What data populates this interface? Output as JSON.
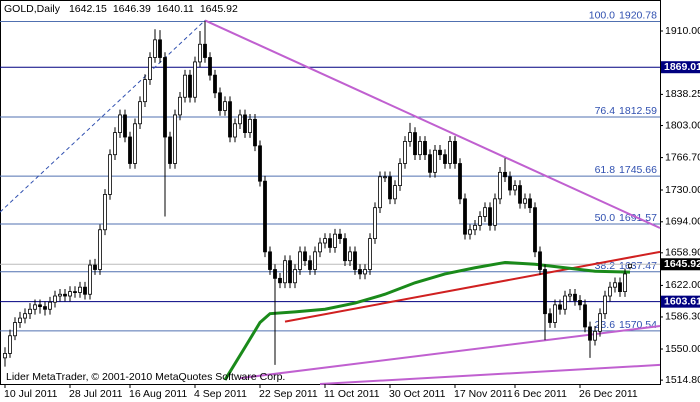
{
  "chart_data": {
    "type": "candlestick",
    "symbol": "GOLD,Daily",
    "footer": "Lider MetaTrader, © 2001-2010 MetaQuotes Software Corp.",
    "xlim": [
      -1,
      131
    ],
    "ylim": [
      1510.4,
      1945.1
    ],
    "yticks": [
      {
        "value": 1910,
        "label": "1910.00"
      },
      {
        "value": 1838.25,
        "label": "1838.25"
      },
      {
        "value": 1803,
        "label": "1803.00"
      },
      {
        "value": 1766.7,
        "label": "1766.70"
      },
      {
        "value": 1730,
        "label": "1730.00"
      },
      {
        "value": 1694,
        "label": "1694.00"
      },
      {
        "value": 1658.9,
        "label": "1658.90"
      },
      {
        "value": 1622,
        "label": "1622.00"
      },
      {
        "value": 1586.3,
        "label": "1586.30"
      },
      {
        "value": 1550,
        "label": "1550.00"
      },
      {
        "value": 1514.8,
        "label": "1514.80"
      }
    ],
    "xticks": [
      {
        "value": 0,
        "label": "10 Jul 2011"
      },
      {
        "value": 13,
        "label": "28 Jul 2011"
      },
      {
        "value": 25,
        "label": "16 Aug 2011"
      },
      {
        "value": 38,
        "label": "4 Sep 2011"
      },
      {
        "value": 51,
        "label": "22 Sep 2011"
      },
      {
        "value": 64,
        "label": "11 Oct 2011"
      },
      {
        "value": 77,
        "label": "30 Oct 2011"
      },
      {
        "value": 90,
        "label": "17 Nov 2011"
      },
      {
        "value": 102,
        "label": "6 Dec 2011"
      },
      {
        "value": 115,
        "label": "26 Dec 2011"
      }
    ],
    "ohlc": [
      [
        1540,
        1552,
        1530,
        1545
      ],
      [
        1545,
        1572,
        1540,
        1565
      ],
      [
        1565,
        1586,
        1560,
        1580
      ],
      [
        1580,
        1592,
        1574,
        1585
      ],
      [
        1585,
        1596,
        1579,
        1590
      ],
      [
        1590,
        1602,
        1584,
        1595
      ],
      [
        1595,
        1606,
        1589,
        1600
      ],
      [
        1600,
        1606,
        1590,
        1598
      ],
      [
        1598,
        1604,
        1588,
        1595
      ],
      [
        1595,
        1609,
        1589,
        1603
      ],
      [
        1603,
        1616,
        1597,
        1610
      ],
      [
        1610,
        1618,
        1604,
        1612
      ],
      [
        1612,
        1618,
        1604,
        1610
      ],
      [
        1610,
        1621,
        1604,
        1615
      ],
      [
        1615,
        1621,
        1608,
        1614
      ],
      [
        1614,
        1626,
        1608,
        1620
      ],
      [
        1620,
        1626,
        1606,
        1612
      ],
      [
        1612,
        1651,
        1606,
        1645
      ],
      [
        1645,
        1652,
        1634,
        1640
      ],
      [
        1640,
        1691,
        1634,
        1685
      ],
      [
        1685,
        1731,
        1679,
        1725
      ],
      [
        1725,
        1776,
        1719,
        1770
      ],
      [
        1770,
        1801,
        1764,
        1795
      ],
      [
        1795,
        1821,
        1789,
        1815
      ],
      [
        1815,
        1821,
        1784,
        1790
      ],
      [
        1790,
        1796,
        1754,
        1760
      ],
      [
        1760,
        1811,
        1754,
        1805
      ],
      [
        1805,
        1836,
        1799,
        1830
      ],
      [
        1830,
        1861,
        1824,
        1855
      ],
      [
        1855,
        1886,
        1849,
        1880
      ],
      [
        1880,
        1912,
        1874,
        1900
      ],
      [
        1900,
        1911,
        1874,
        1880
      ],
      [
        1880,
        1886,
        1700,
        1790
      ],
      [
        1790,
        1796,
        1754,
        1760
      ],
      [
        1760,
        1821,
        1754,
        1815
      ],
      [
        1815,
        1841,
        1809,
        1835
      ],
      [
        1835,
        1866,
        1829,
        1860
      ],
      [
        1860,
        1866,
        1829,
        1835
      ],
      [
        1835,
        1881,
        1829,
        1875
      ],
      [
        1875,
        1910,
        1869,
        1895
      ],
      [
        1895,
        1921,
        1874,
        1880
      ],
      [
        1880,
        1886,
        1854,
        1860
      ],
      [
        1860,
        1866,
        1834,
        1840
      ],
      [
        1840,
        1846,
        1814,
        1820
      ],
      [
        1820,
        1836,
        1814,
        1830
      ],
      [
        1830,
        1836,
        1784,
        1790
      ],
      [
        1790,
        1811,
        1784,
        1805
      ],
      [
        1805,
        1821,
        1799,
        1815
      ],
      [
        1815,
        1821,
        1789,
        1795
      ],
      [
        1795,
        1816,
        1789,
        1810
      ],
      [
        1810,
        1816,
        1774,
        1780
      ],
      [
        1780,
        1786,
        1734,
        1740
      ],
      [
        1740,
        1746,
        1654,
        1660
      ],
      [
        1660,
        1666,
        1634,
        1640
      ],
      [
        1640,
        1646,
        1532,
        1630
      ],
      [
        1630,
        1636,
        1619,
        1625
      ],
      [
        1625,
        1656,
        1619,
        1650
      ],
      [
        1650,
        1656,
        1619,
        1625
      ],
      [
        1625,
        1646,
        1619,
        1640
      ],
      [
        1640,
        1666,
        1634,
        1660
      ],
      [
        1660,
        1666,
        1644,
        1650
      ],
      [
        1650,
        1656,
        1634,
        1640
      ],
      [
        1640,
        1666,
        1634,
        1660
      ],
      [
        1660,
        1676,
        1654,
        1670
      ],
      [
        1670,
        1681,
        1664,
        1675
      ],
      [
        1675,
        1681,
        1659,
        1665
      ],
      [
        1665,
        1686,
        1659,
        1680
      ],
      [
        1680,
        1686,
        1669,
        1675
      ],
      [
        1675,
        1681,
        1644,
        1650
      ],
      [
        1650,
        1666,
        1644,
        1660
      ],
      [
        1660,
        1666,
        1634,
        1640
      ],
      [
        1640,
        1646,
        1629,
        1635
      ],
      [
        1635,
        1646,
        1629,
        1640
      ],
      [
        1640,
        1681,
        1634,
        1675
      ],
      [
        1675,
        1716,
        1669,
        1710
      ],
      [
        1710,
        1751,
        1704,
        1745
      ],
      [
        1745,
        1751,
        1739,
        1745
      ],
      [
        1745,
        1751,
        1714,
        1720
      ],
      [
        1720,
        1741,
        1714,
        1735
      ],
      [
        1735,
        1766,
        1729,
        1760
      ],
      [
        1760,
        1791,
        1754,
        1785
      ],
      [
        1785,
        1806,
        1779,
        1795
      ],
      [
        1795,
        1801,
        1764,
        1770
      ],
      [
        1770,
        1791,
        1764,
        1785
      ],
      [
        1785,
        1791,
        1764,
        1770
      ],
      [
        1770,
        1776,
        1744,
        1750
      ],
      [
        1750,
        1781,
        1744,
        1775
      ],
      [
        1775,
        1781,
        1764,
        1770
      ],
      [
        1770,
        1776,
        1754,
        1760
      ],
      [
        1760,
        1791,
        1754,
        1785
      ],
      [
        1785,
        1791,
        1754,
        1760
      ],
      [
        1760,
        1766,
        1714,
        1720
      ],
      [
        1720,
        1726,
        1674,
        1680
      ],
      [
        1680,
        1691,
        1674,
        1685
      ],
      [
        1685,
        1696,
        1679,
        1690
      ],
      [
        1690,
        1706,
        1684,
        1700
      ],
      [
        1700,
        1716,
        1694,
        1710
      ],
      [
        1710,
        1716,
        1684,
        1690
      ],
      [
        1690,
        1726,
        1684,
        1720
      ],
      [
        1720,
        1756,
        1714,
        1750
      ],
      [
        1750,
        1766,
        1739,
        1745
      ],
      [
        1745,
        1751,
        1724,
        1730
      ],
      [
        1730,
        1741,
        1724,
        1735
      ],
      [
        1735,
        1741,
        1709,
        1715
      ],
      [
        1715,
        1726,
        1709,
        1720
      ],
      [
        1720,
        1726,
        1704,
        1710
      ],
      [
        1710,
        1716,
        1654,
        1660
      ],
      [
        1660,
        1666,
        1634,
        1640
      ],
      [
        1640,
        1646,
        1560,
        1590
      ],
      [
        1590,
        1596,
        1574,
        1580
      ],
      [
        1580,
        1606,
        1574,
        1600
      ],
      [
        1600,
        1606,
        1589,
        1595
      ],
      [
        1595,
        1616,
        1589,
        1610
      ],
      [
        1610,
        1618,
        1604,
        1612
      ],
      [
        1612,
        1618,
        1599,
        1605
      ],
      [
        1605,
        1611,
        1594,
        1600
      ],
      [
        1600,
        1606,
        1569,
        1575
      ],
      [
        1575,
        1581,
        1540,
        1560
      ],
      [
        1560,
        1576,
        1554,
        1570
      ],
      [
        1570,
        1596,
        1564,
        1590
      ],
      [
        1590,
        1616,
        1584,
        1610
      ],
      [
        1610,
        1626,
        1604,
        1620
      ],
      [
        1620,
        1631,
        1614,
        1625
      ],
      [
        1625,
        1631,
        1609,
        1615
      ],
      [
        1615,
        1641,
        1609,
        1635
      ],
      [
        1642.15,
        1646.39,
        1640.11,
        1645.92
      ]
    ],
    "ma": {
      "color": "#1a8a1a",
      "x": [
        44,
        48,
        51,
        53,
        58,
        64,
        70,
        76,
        82,
        88,
        94,
        100,
        106,
        112,
        118,
        125
      ],
      "values": [
        1515,
        1552,
        1580,
        1590,
        1592,
        1595,
        1602,
        1612,
        1625,
        1635,
        1642,
        1648,
        1646,
        1642,
        1638,
        1637
      ]
    },
    "trendlines": [
      {
        "color": "#c060d0",
        "dash": false,
        "x": [
          40,
          131
        ],
        "values": [
          1922,
          1687
        ]
      },
      {
        "color": "#c060d0",
        "dash": false,
        "x": [
          47,
          131
        ],
        "values": [
          1517,
          1576
        ]
      },
      {
        "color": "#c060d0",
        "dash": false,
        "x": [
          63,
          131
        ],
        "values": [
          1510.4,
          1532
        ]
      },
      {
        "color": "#d02020",
        "dash": false,
        "x": [
          56,
          131
        ],
        "values": [
          1581,
          1660
        ]
      },
      {
        "color": "#3050b0",
        "dash": true,
        "x": [
          -1,
          40
        ],
        "values": [
          1705,
          1922
        ]
      }
    ],
    "fib_levels": [
      {
        "level": "100.0",
        "value": 1920.78
      },
      {
        "level": "76.4",
        "value": 1812.59
      },
      {
        "level": "61.8",
        "value": 1745.66
      },
      {
        "level": "50.0",
        "value": 1691.57
      },
      {
        "level": "38.2",
        "value": 1637.47
      },
      {
        "level": "23.6",
        "value": 1570.54
      }
    ],
    "hlines": [
      1869.01,
      1603.61
    ]
  }
}
